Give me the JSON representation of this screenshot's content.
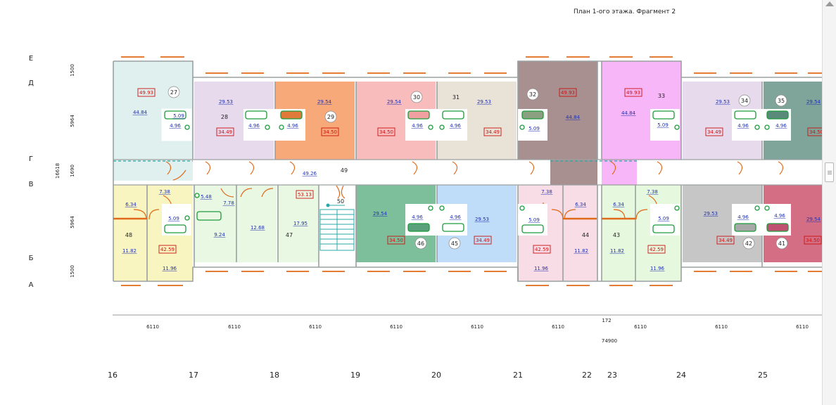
{
  "title": "План 1-ого этажа. Фрагмент 2",
  "colors": {
    "wall": "#9aa0a0",
    "window": "#e06a1a",
    "area_link": "#2030b0",
    "area_boxed": "#cc1010",
    "plumbing": "#1c9c3c",
    "stair": "#2aa8a8"
  },
  "axes_letters": [
    "Е",
    "Д",
    "Г",
    "В",
    "Б",
    "А"
  ],
  "axes_numbers": [
    "16",
    "17",
    "18",
    "19",
    "20",
    "21",
    "22",
    "23",
    "24",
    "25"
  ],
  "dims_left": [
    "1500",
    "5964",
    "1690",
    "16618",
    "5964",
    "1500"
  ],
  "dims_bottom": [
    "6110",
    "6110",
    "6110",
    "6110",
    "6110",
    "6110",
    "6110",
    "6110",
    "6110"
  ],
  "dim_172": "172",
  "dim_total": "74900",
  "corridor": {
    "area": "49.26",
    "number": "49"
  },
  "stair": {
    "number": "50"
  },
  "apartment_numbers": [
    "27",
    "28",
    "29",
    "30",
    "31",
    "32",
    "33",
    "34",
    "35",
    "41",
    "42",
    "43",
    "44",
    "45",
    "46",
    "47",
    "48"
  ],
  "areas_link": [
    "44.84",
    "29.53",
    "29.54",
    "29.54",
    "29.53",
    "44.84",
    "44.84",
    "29.53",
    "29.54",
    "5.09",
    "4.96",
    "4.96",
    "4.96",
    "4.96",
    "4.96",
    "5.09",
    "5.09",
    "4.96",
    "4.96",
    "7.38",
    "6.34",
    "5.48",
    "7.78",
    "9.24",
    "12.68",
    "17.95",
    "11.82",
    "5.09",
    "11.96",
    "29.54",
    "4.96",
    "4.96",
    "29.53",
    "5.09",
    "7.38",
    "6.34",
    "11.96",
    "11.82",
    "6.34",
    "11.82",
    "7.38",
    "5.09",
    "11.96",
    "29.53",
    "4.96",
    "4.96",
    "29.54"
  ],
  "areas_boxed": [
    "49.93",
    "34.49",
    "34.50",
    "34.50",
    "34.49",
    "49.93",
    "49.93",
    "34.49",
    "34.50",
    "53.13",
    "42.59",
    "34.50",
    "34.49",
    "42.59",
    "42.59",
    "34.49",
    "34.50"
  ]
}
